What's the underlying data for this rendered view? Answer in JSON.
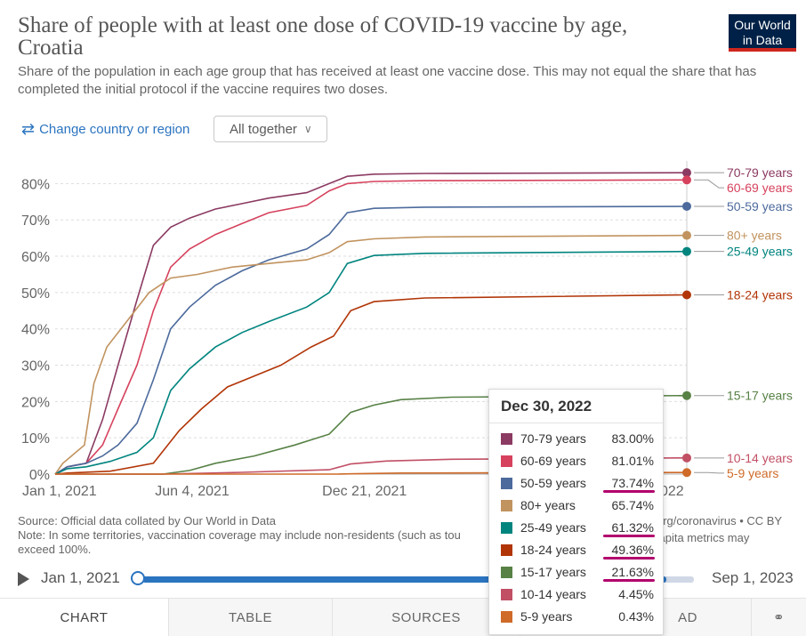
{
  "header": {
    "title": "Share of people with at least one dose of COVID-19 vaccine by age, Croatia",
    "subtitle": "Share of the population in each age group that has received at least one vaccine dose. This may not equal the share that has completed the initial protocol if the vaccine requires two doses.",
    "logo_line1": "Our World",
    "logo_line2": "in Data"
  },
  "controls": {
    "change_country_label": "Change country or region",
    "mode_label": "All together"
  },
  "chart_data": {
    "type": "line",
    "title": "Share of people with at least one dose of COVID-19 vaccine by age, Croatia",
    "ylim": [
      0,
      85
    ],
    "ytick_labels": [
      "0%",
      "10%",
      "20%",
      "30%",
      "40%",
      "50%",
      "60%",
      "70%",
      "80%"
    ],
    "yticks": [
      0,
      10,
      20,
      30,
      40,
      50,
      60,
      70,
      80
    ],
    "xlim": [
      "2020-12-27",
      "2022-12-30"
    ],
    "xticks": [
      {
        "date": "2021-01-01",
        "label": "Jan 1, 2021"
      },
      {
        "date": "2021-06-04",
        "label": "Jun 4, 2021"
      },
      {
        "date": "2021-12-21",
        "label": "Dec 21, 2021"
      },
      {
        "date": "2022-12-30",
        "label": "…022"
      }
    ],
    "grid": "horizontal dashed",
    "hover_date": "2022-12-30",
    "series": [
      {
        "name": "70-79 years",
        "color": "#8b3a62",
        "points": [
          [
            "2020-12-27",
            0
          ],
          [
            "2021-01-10",
            2
          ],
          [
            "2021-02-01",
            3
          ],
          [
            "2021-02-20",
            15
          ],
          [
            "2021-03-10",
            30
          ],
          [
            "2021-04-01",
            48
          ],
          [
            "2021-04-20",
            63
          ],
          [
            "2021-05-10",
            68
          ],
          [
            "2021-06-01",
            70.5
          ],
          [
            "2021-07-01",
            73
          ],
          [
            "2021-08-01",
            74.5
          ],
          [
            "2021-09-01",
            76
          ],
          [
            "2021-10-15",
            77.5
          ],
          [
            "2021-11-10",
            80
          ],
          [
            "2021-12-01",
            82
          ],
          [
            "2022-01-01",
            82.6
          ],
          [
            "2022-03-01",
            82.8
          ],
          [
            "2022-12-30",
            83.0
          ]
        ]
      },
      {
        "name": "60-69 years",
        "color": "#d6425d",
        "points": [
          [
            "2020-12-27",
            0
          ],
          [
            "2021-01-10",
            2
          ],
          [
            "2021-02-01",
            3
          ],
          [
            "2021-02-20",
            8
          ],
          [
            "2021-03-10",
            18
          ],
          [
            "2021-04-01",
            30
          ],
          [
            "2021-04-20",
            45
          ],
          [
            "2021-05-10",
            57
          ],
          [
            "2021-06-01",
            62
          ],
          [
            "2021-07-01",
            66
          ],
          [
            "2021-08-01",
            69
          ],
          [
            "2021-09-01",
            72
          ],
          [
            "2021-10-15",
            74
          ],
          [
            "2021-11-10",
            78
          ],
          [
            "2021-12-01",
            80
          ],
          [
            "2022-01-01",
            80.6
          ],
          [
            "2022-03-01",
            80.8
          ],
          [
            "2022-12-30",
            81.01
          ]
        ]
      },
      {
        "name": "50-59 years",
        "color": "#4c6a9c",
        "points": [
          [
            "2020-12-27",
            0
          ],
          [
            "2021-01-10",
            2
          ],
          [
            "2021-02-01",
            3
          ],
          [
            "2021-02-20",
            5
          ],
          [
            "2021-03-10",
            8
          ],
          [
            "2021-04-01",
            14
          ],
          [
            "2021-04-20",
            26
          ],
          [
            "2021-05-10",
            40
          ],
          [
            "2021-06-01",
            46
          ],
          [
            "2021-07-01",
            52
          ],
          [
            "2021-08-01",
            56
          ],
          [
            "2021-09-01",
            59
          ],
          [
            "2021-10-15",
            62
          ],
          [
            "2021-11-10",
            66
          ],
          [
            "2021-12-01",
            72
          ],
          [
            "2022-01-01",
            73.2
          ],
          [
            "2022-03-01",
            73.5
          ],
          [
            "2022-12-30",
            73.74
          ]
        ]
      },
      {
        "name": "80+ years",
        "color": "#c1935f",
        "points": [
          [
            "2020-12-27",
            0
          ],
          [
            "2021-01-05",
            3
          ],
          [
            "2021-01-15",
            5
          ],
          [
            "2021-01-30",
            8
          ],
          [
            "2021-02-10",
            25
          ],
          [
            "2021-02-25",
            35
          ],
          [
            "2021-03-20",
            42
          ],
          [
            "2021-04-15",
            50
          ],
          [
            "2021-05-10",
            54
          ],
          [
            "2021-06-10",
            55
          ],
          [
            "2021-07-20",
            57
          ],
          [
            "2021-09-01",
            58
          ],
          [
            "2021-10-15",
            59
          ],
          [
            "2021-11-10",
            61
          ],
          [
            "2021-12-01",
            64
          ],
          [
            "2022-01-01",
            64.8
          ],
          [
            "2022-03-01",
            65.3
          ],
          [
            "2022-12-30",
            65.74
          ]
        ]
      },
      {
        "name": "25-49 years",
        "color": "#00847e",
        "points": [
          [
            "2020-12-27",
            0
          ],
          [
            "2021-01-10",
            1.5
          ],
          [
            "2021-02-01",
            2
          ],
          [
            "2021-03-01",
            3.5
          ],
          [
            "2021-04-01",
            6
          ],
          [
            "2021-04-20",
            10
          ],
          [
            "2021-05-10",
            23
          ],
          [
            "2021-06-01",
            29
          ],
          [
            "2021-07-01",
            35
          ],
          [
            "2021-08-01",
            39
          ],
          [
            "2021-09-01",
            42
          ],
          [
            "2021-10-15",
            46
          ],
          [
            "2021-11-10",
            50
          ],
          [
            "2021-12-01",
            58
          ],
          [
            "2022-01-01",
            60.2
          ],
          [
            "2022-03-01",
            60.8
          ],
          [
            "2022-12-30",
            61.32
          ]
        ]
      },
      {
        "name": "18-24 years",
        "color": "#b13507",
        "points": [
          [
            "2020-12-27",
            0
          ],
          [
            "2021-01-10",
            0.3
          ],
          [
            "2021-03-01",
            0.8
          ],
          [
            "2021-04-20",
            3
          ],
          [
            "2021-05-20",
            12
          ],
          [
            "2021-06-15",
            18
          ],
          [
            "2021-07-15",
            24
          ],
          [
            "2021-08-15",
            27
          ],
          [
            "2021-09-15",
            30
          ],
          [
            "2021-10-20",
            35
          ],
          [
            "2021-11-15",
            38
          ],
          [
            "2021-12-05",
            45
          ],
          [
            "2022-01-01",
            47.5
          ],
          [
            "2022-03-01",
            48.5
          ],
          [
            "2022-12-30",
            49.36
          ]
        ]
      },
      {
        "name": "15-17 years",
        "color": "#578145",
        "points": [
          [
            "2020-12-27",
            0
          ],
          [
            "2021-05-01",
            0
          ],
          [
            "2021-06-01",
            1
          ],
          [
            "2021-07-01",
            3
          ],
          [
            "2021-08-15",
            5
          ],
          [
            "2021-10-01",
            8
          ],
          [
            "2021-11-10",
            11
          ],
          [
            "2021-12-05",
            17
          ],
          [
            "2022-01-01",
            19
          ],
          [
            "2022-02-01",
            20.5
          ],
          [
            "2022-04-01",
            21.2
          ],
          [
            "2022-12-30",
            21.63
          ]
        ]
      },
      {
        "name": "10-14 years",
        "color": "#c15065",
        "points": [
          [
            "2020-12-27",
            0
          ],
          [
            "2021-05-01",
            0
          ],
          [
            "2021-08-01",
            0.5
          ],
          [
            "2021-11-10",
            1.2
          ],
          [
            "2021-12-05",
            2.8
          ],
          [
            "2022-01-15",
            3.6
          ],
          [
            "2022-04-01",
            4.1
          ],
          [
            "2022-12-30",
            4.45
          ]
        ]
      },
      {
        "name": "5-9 years",
        "color": "#cf6a28",
        "points": [
          [
            "2020-12-27",
            0
          ],
          [
            "2021-11-20",
            0
          ],
          [
            "2021-12-10",
            0.1
          ],
          [
            "2022-02-01",
            0.3
          ],
          [
            "2022-12-30",
            0.43
          ]
        ]
      }
    ]
  },
  "legend_labels": [
    "70-79 years",
    "60-69 years",
    "50-59 years",
    "80+ years",
    "25-49 years",
    "18-24 years",
    "15-17 years",
    "10-14 years",
    "5-9 years"
  ],
  "tooltip": {
    "date": "Dec 30, 2022",
    "rows": [
      {
        "label": "70-79 years",
        "value": "83.00%",
        "color": "#8b3a62",
        "underline": false
      },
      {
        "label": "60-69 years",
        "value": "81.01%",
        "color": "#d6425d",
        "underline": false
      },
      {
        "label": "50-59 years",
        "value": "73.74%",
        "color": "#4c6a9c",
        "underline": true
      },
      {
        "label": "80+ years",
        "value": "65.74%",
        "color": "#c1935f",
        "underline": false
      },
      {
        "label": "25-49 years",
        "value": "61.32%",
        "color": "#00847e",
        "underline": true
      },
      {
        "label": "18-24 years",
        "value": "49.36%",
        "color": "#b13507",
        "underline": true
      },
      {
        "label": "15-17 years",
        "value": "21.63%",
        "color": "#578145",
        "underline": true
      },
      {
        "label": "10-14 years",
        "value": "4.45%",
        "color": "#c15065",
        "underline": false
      },
      {
        "label": "5-9 years",
        "value": "0.43%",
        "color": "#cf6a28",
        "underline": false
      }
    ]
  },
  "footer": {
    "source": "Source: Official data collated by Our World in Data",
    "note": "Note: In some territories, vaccination coverage may include non-residents (such as tou",
    "note2": "exceed 100%.",
    "source_right": "org/coronavirus • CC BY",
    "percap": "capita metrics may"
  },
  "timeline": {
    "start": "Jan 1, 2021",
    "end": "Sep 1, 2023",
    "position": 0.95
  },
  "tabs": [
    "CHART",
    "TABLE",
    "SOURCES",
    "AD"
  ],
  "share_icon": "share-icon"
}
